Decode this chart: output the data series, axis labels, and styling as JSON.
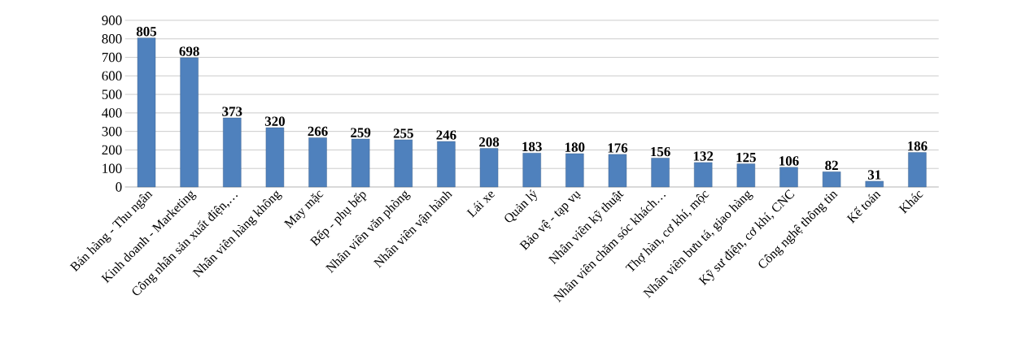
{
  "chart_data": {
    "type": "bar",
    "categories": [
      "Bán hàng - Thu ngân",
      "Kinh doanh - Marketing",
      "Công nhân sản xuất điện,…",
      "Nhân viên hàng không",
      "May mặc",
      "Bếp - phụ bếp",
      "Nhân viên văn phòng",
      "Nhân viên vận hành",
      "Lái xe",
      "Quản lý",
      "Bảo vệ - tạp vụ",
      "Nhân viên kỹ thuật",
      "Nhân viên chăm sóc khách…",
      "Thợ hàn, cơ khí, mộc",
      "Nhân viên bưu tá, giao hàng",
      "Kỹ sư điện, cơ khí, CNC",
      "Công nghệ thông tin",
      "Kế toán",
      "Khác"
    ],
    "values": [
      805,
      698,
      373,
      320,
      266,
      259,
      255,
      246,
      208,
      183,
      180,
      176,
      156,
      132,
      125,
      106,
      82,
      31,
      186
    ],
    "color": "#4f81bd",
    "ylim": [
      0,
      900
    ],
    "yticks": [
      0,
      100,
      200,
      300,
      400,
      500,
      600,
      700,
      800,
      900
    ],
    "grid": "y",
    "data_labels": true
  }
}
